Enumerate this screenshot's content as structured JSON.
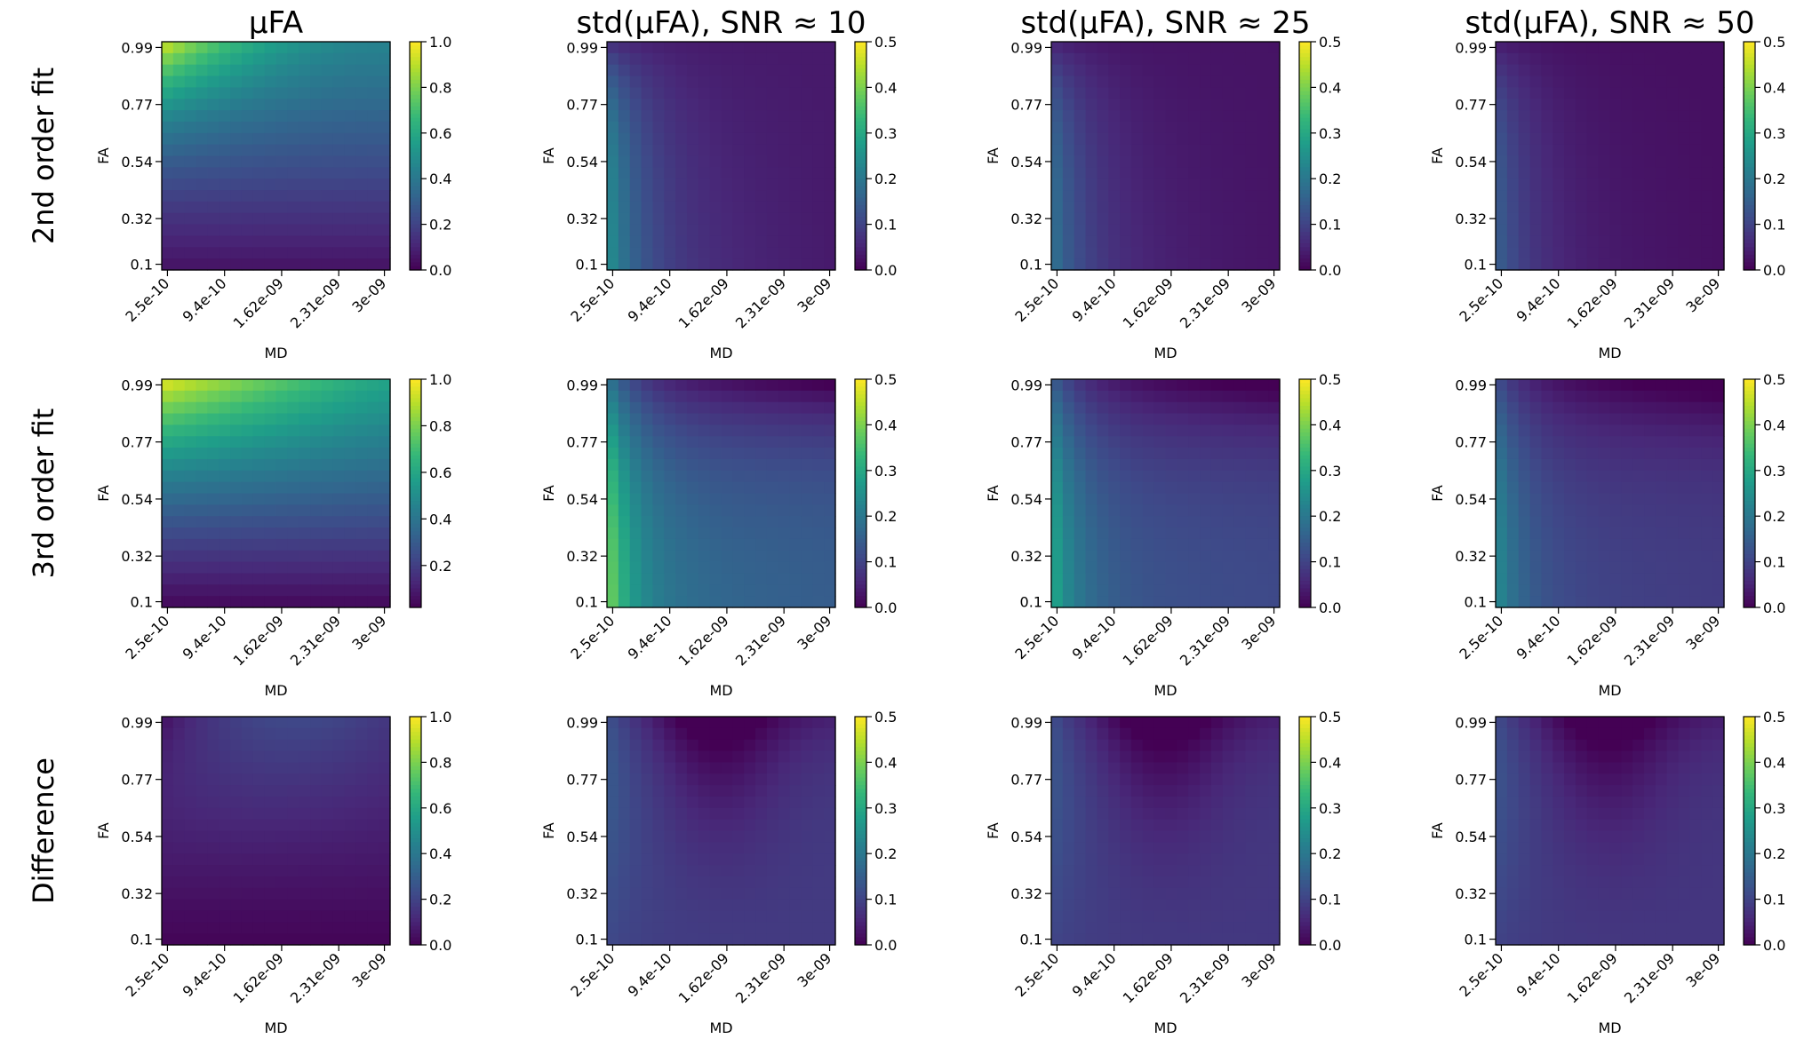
{
  "figure": {
    "column_titles": [
      "μFA",
      "std(μFA), SNR ≈ 10",
      "std(μFA), SNR ≈ 25",
      "std(μFA), SNR ≈ 50"
    ],
    "row_labels": [
      "2nd order fit",
      "3rd order fit",
      "Difference"
    ]
  },
  "chart_data": {
    "type": "heatmap",
    "colormap": "viridis",
    "grid_size": [
      20,
      20
    ],
    "xlabel": "MD",
    "ylabel": "FA",
    "x_ticks": [
      "2.5e-10",
      "9.4e-10",
      "1.62e-09",
      "2.31e-09",
      "3e-09"
    ],
    "y_ticks": [
      "0.99",
      "0.77",
      "0.54",
      "0.32",
      "0.1"
    ],
    "x_range": [
      2.5e-10,
      3e-09
    ],
    "y_range": [
      0.1,
      0.99
    ],
    "panels": [
      {
        "row": 0,
        "col": 0,
        "model": "mufa2",
        "vmin": 0,
        "vmax": 1.0,
        "cb_ticks": [
          "1.0",
          "0.8",
          "0.6",
          "0.4",
          "0.2",
          "0.0"
        ],
        "cb_values": [
          1.0,
          0.8,
          0.6,
          0.4,
          0.2,
          0.0
        ]
      },
      {
        "row": 0,
        "col": 1,
        "model": "std2",
        "snr": 10,
        "vmin": 0,
        "vmax": 0.5,
        "cb_ticks": [
          "0.5",
          "0.4",
          "0.3",
          "0.2",
          "0.1",
          "0.0"
        ],
        "cb_values": [
          0.5,
          0.4,
          0.3,
          0.2,
          0.1,
          0.0
        ]
      },
      {
        "row": 0,
        "col": 2,
        "model": "std2",
        "snr": 25,
        "vmin": 0,
        "vmax": 0.5,
        "cb_ticks": [
          "0.5",
          "0.4",
          "0.3",
          "0.2",
          "0.1",
          "0.0"
        ],
        "cb_values": [
          0.5,
          0.4,
          0.3,
          0.2,
          0.1,
          0.0
        ]
      },
      {
        "row": 0,
        "col": 3,
        "model": "std2",
        "snr": 50,
        "vmin": 0,
        "vmax": 0.5,
        "cb_ticks": [
          "0.5",
          "0.4",
          "0.3",
          "0.2",
          "0.1",
          "0.0"
        ],
        "cb_values": [
          0.5,
          0.4,
          0.3,
          0.2,
          0.1,
          0.0
        ]
      },
      {
        "row": 1,
        "col": 0,
        "model": "mufa3",
        "vmin": 0.02,
        "vmax": 1.0,
        "cb_ticks": [
          "1.0",
          "0.8",
          "0.6",
          "0.4",
          "0.2"
        ],
        "cb_values": [
          1.0,
          0.8,
          0.6,
          0.4,
          0.2
        ]
      },
      {
        "row": 1,
        "col": 1,
        "model": "std3",
        "snr": 10,
        "vmin": 0,
        "vmax": 0.5,
        "cb_ticks": [
          "0.5",
          "0.4",
          "0.3",
          "0.2",
          "0.1",
          "0.0"
        ],
        "cb_values": [
          0.5,
          0.4,
          0.3,
          0.2,
          0.1,
          0.0
        ]
      },
      {
        "row": 1,
        "col": 2,
        "model": "std3",
        "snr": 25,
        "vmin": 0,
        "vmax": 0.5,
        "cb_ticks": [
          "0.5",
          "0.4",
          "0.3",
          "0.2",
          "0.1",
          "0.0"
        ],
        "cb_values": [
          0.5,
          0.4,
          0.3,
          0.2,
          0.1,
          0.0
        ]
      },
      {
        "row": 1,
        "col": 3,
        "model": "std3",
        "snr": 50,
        "vmin": 0,
        "vmax": 0.5,
        "cb_ticks": [
          "0.5",
          "0.4",
          "0.3",
          "0.2",
          "0.1",
          "0.0"
        ],
        "cb_values": [
          0.5,
          0.4,
          0.3,
          0.2,
          0.1,
          0.0
        ]
      },
      {
        "row": 2,
        "col": 0,
        "model": "diffmu",
        "vmin": 0,
        "vmax": 1.0,
        "cb_ticks": [
          "1.0",
          "0.8",
          "0.6",
          "0.4",
          "0.2",
          "0.0"
        ],
        "cb_values": [
          1.0,
          0.8,
          0.6,
          0.4,
          0.2,
          0.0
        ]
      },
      {
        "row": 2,
        "col": 1,
        "model": "diffstd",
        "snr": 10,
        "vmin": 0,
        "vmax": 0.5,
        "cb_ticks": [
          "0.5",
          "0.4",
          "0.3",
          "0.2",
          "0.1",
          "0.0"
        ],
        "cb_values": [
          0.5,
          0.4,
          0.3,
          0.2,
          0.1,
          0.0
        ]
      },
      {
        "row": 2,
        "col": 2,
        "model": "diffstd",
        "snr": 25,
        "vmin": 0,
        "vmax": 0.5,
        "cb_ticks": [
          "0.5",
          "0.4",
          "0.3",
          "0.2",
          "0.1",
          "0.0"
        ],
        "cb_values": [
          0.5,
          0.4,
          0.3,
          0.2,
          0.1,
          0.0
        ]
      },
      {
        "row": 2,
        "col": 3,
        "model": "diffstd",
        "snr": 50,
        "vmin": 0,
        "vmax": 0.5,
        "cb_ticks": [
          "0.5",
          "0.4",
          "0.3",
          "0.2",
          "0.1",
          "0.0"
        ],
        "cb_values": [
          0.5,
          0.4,
          0.3,
          0.2,
          0.1,
          0.0
        ]
      }
    ]
  }
}
